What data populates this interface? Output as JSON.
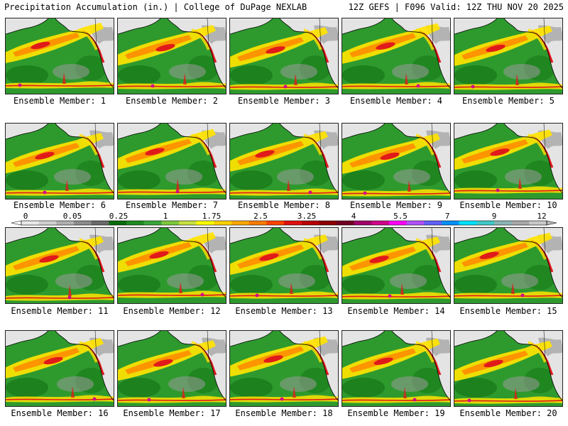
{
  "header": {
    "title": "Precipitation Accumulation (in.) | College of DuPage NEXLAB",
    "run": "12Z GEFS | F096 Valid: 12Z THU NOV 20 2025"
  },
  "panels": [
    {
      "label": "Ensemble Member: 1"
    },
    {
      "label": "Ensemble Member: 2"
    },
    {
      "label": "Ensemble Member: 3"
    },
    {
      "label": "Ensemble Member: 4"
    },
    {
      "label": "Ensemble Member: 5"
    },
    {
      "label": "Ensemble Member: 6"
    },
    {
      "label": "Ensemble Member: 7"
    },
    {
      "label": "Ensemble Member: 8"
    },
    {
      "label": "Ensemble Member: 9"
    },
    {
      "label": "Ensemble Member: 10"
    },
    {
      "label": "Ensemble Member: 11"
    },
    {
      "label": "Ensemble Member: 12"
    },
    {
      "label": "Ensemble Member: 13"
    },
    {
      "label": "Ensemble Member: 14"
    },
    {
      "label": "Ensemble Member: 15"
    },
    {
      "label": "Ensemble Member: 16"
    },
    {
      "label": "Ensemble Member: 17"
    },
    {
      "label": "Ensemble Member: 18"
    },
    {
      "label": "Ensemble Member: 19"
    },
    {
      "label": "Ensemble Member: 20"
    }
  ],
  "legend": {
    "tick_labels": [
      "0",
      "0.05",
      "0.25",
      "1",
      "1.75",
      "2.5",
      "3.25",
      "4",
      "5.5",
      "7",
      "9",
      "12"
    ],
    "colors": [
      "#e8e8e8",
      "#d0d0d0",
      "#b0b0b0",
      "#8c8c8c",
      "#6a6a6a",
      "#0a6a0a",
      "#1f8a1f",
      "#3aa53a",
      "#7dc83a",
      "#c8e040",
      "#ffff00",
      "#ffd200",
      "#ffa800",
      "#ff7a00",
      "#ff4400",
      "#e01010",
      "#b80000",
      "#8c0000",
      "#700020",
      "#a0006a",
      "#d0008c",
      "#ff00ff",
      "#b050ff",
      "#6060ff",
      "#0090ff",
      "#00e0ff",
      "#40c8c8",
      "#8cb4b4",
      "#a8a8a8",
      "#c8c8c8"
    ]
  },
  "map_colors": {
    "land_light": "#e4e4e4",
    "land_dark": "#a6a6a6",
    "green": "#2e9a2e",
    "green_dark": "#127212",
    "yellow": "#ffe400",
    "orange": "#ff8c00",
    "red": "#e01a1a",
    "magenta": "#d0008c",
    "coast": "#000000"
  }
}
